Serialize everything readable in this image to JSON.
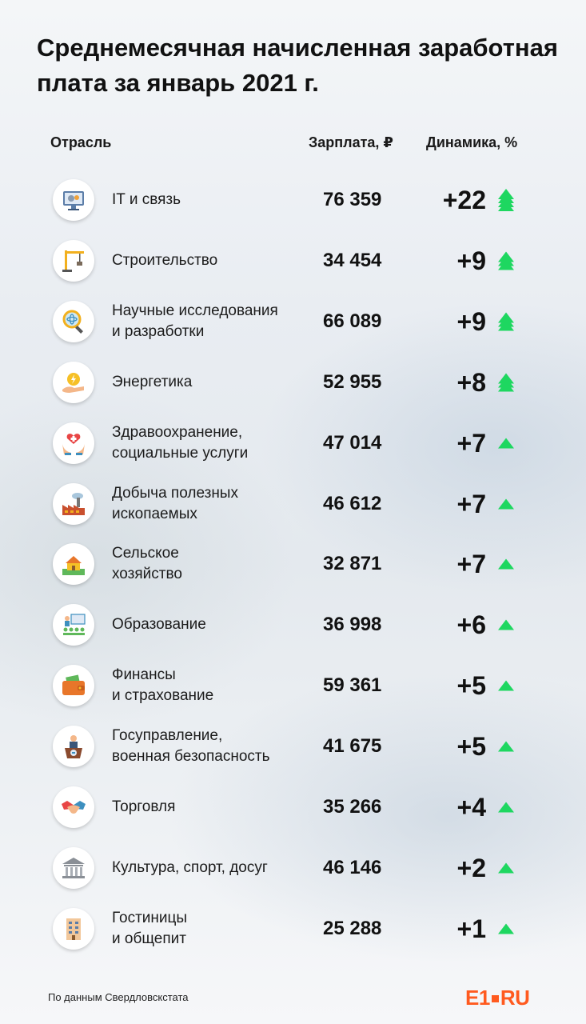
{
  "title": "Среднемесячная начисленная заработная плата за январь 2021 г.",
  "headers": {
    "industry": "Отрасль",
    "salary": "Зарплата, ₽",
    "dynamics": "Динамика, %"
  },
  "colors": {
    "arrow": "#1ed760",
    "accent": "#ff5a1f"
  },
  "chart_data": {
    "type": "table",
    "title": "Среднемесячная начисленная заработная плата за январь 2021 г.",
    "columns": [
      "Отрасль",
      "Зарплата, ₽",
      "Динамика, %"
    ],
    "rows": [
      {
        "industry_lines": [
          "IT и связь"
        ],
        "salary": "76 359",
        "salary_value": 76359,
        "dynamics": "+22",
        "dynamics_value": 22,
        "arrow_level": 4,
        "icon": "computer-gears-icon"
      },
      {
        "industry_lines": [
          "Строительство"
        ],
        "salary": "34 454",
        "salary_value": 34454,
        "dynamics": "+9",
        "dynamics_value": 9,
        "arrow_level": 3,
        "icon": "crane-icon"
      },
      {
        "industry_lines": [
          "Научные исследования",
          "и разработки"
        ],
        "salary": "66 089",
        "salary_value": 66089,
        "dynamics": "+9",
        "dynamics_value": 9,
        "arrow_level": 3,
        "icon": "magnifier-atom-icon"
      },
      {
        "industry_lines": [
          "Энергетика"
        ],
        "salary": "52 955",
        "salary_value": 52955,
        "dynamics": "+8",
        "dynamics_value": 8,
        "arrow_level": 3,
        "icon": "hand-lightning-coin-icon"
      },
      {
        "industry_lines": [
          "Здравоохранение,",
          "социальные услуги"
        ],
        "salary": "47 014",
        "salary_value": 47014,
        "dynamics": "+7",
        "dynamics_value": 7,
        "arrow_level": 1,
        "icon": "hands-heart-icon"
      },
      {
        "industry_lines": [
          "Добыча полезных",
          "ископаемых"
        ],
        "salary": "46 612",
        "salary_value": 46612,
        "dynamics": "+7",
        "dynamics_value": 7,
        "arrow_level": 1,
        "icon": "factory-icon"
      },
      {
        "industry_lines": [
          "Сельское",
          "хозяйство"
        ],
        "salary": "32 871",
        "salary_value": 32871,
        "dynamics": "+7",
        "dynamics_value": 7,
        "arrow_level": 1,
        "icon": "farm-house-icon"
      },
      {
        "industry_lines": [
          "Образование"
        ],
        "salary": "36 998",
        "salary_value": 36998,
        "dynamics": "+6",
        "dynamics_value": 6,
        "arrow_level": 1,
        "icon": "classroom-icon"
      },
      {
        "industry_lines": [
          "Финансы",
          "и страхование"
        ],
        "salary": "59 361",
        "salary_value": 59361,
        "dynamics": "+5",
        "dynamics_value": 5,
        "arrow_level": 1,
        "icon": "wallet-icon"
      },
      {
        "industry_lines": [
          "Госуправление,",
          "военная безопасность"
        ],
        "salary": "41 675",
        "salary_value": 41675,
        "dynamics": "+5",
        "dynamics_value": 5,
        "arrow_level": 1,
        "icon": "podium-speaker-icon"
      },
      {
        "industry_lines": [
          "Торговля"
        ],
        "salary": "35 266",
        "salary_value": 35266,
        "dynamics": "+4",
        "dynamics_value": 4,
        "arrow_level": 1,
        "icon": "handshake-icon"
      },
      {
        "industry_lines": [
          "Культура, спорт, досуг"
        ],
        "salary": "46 146",
        "salary_value": 46146,
        "dynamics": "+2",
        "dynamics_value": 2,
        "arrow_level": 1,
        "icon": "museum-icon"
      },
      {
        "industry_lines": [
          "Гостиницы",
          "и общепит"
        ],
        "salary": "25 288",
        "salary_value": 25288,
        "dynamics": "+1",
        "dynamics_value": 1,
        "arrow_level": 1,
        "icon": "hotel-building-icon"
      }
    ]
  },
  "footer": {
    "source": "По данным Свердловскстата",
    "logo_left": "E1",
    "logo_right": "RU"
  }
}
